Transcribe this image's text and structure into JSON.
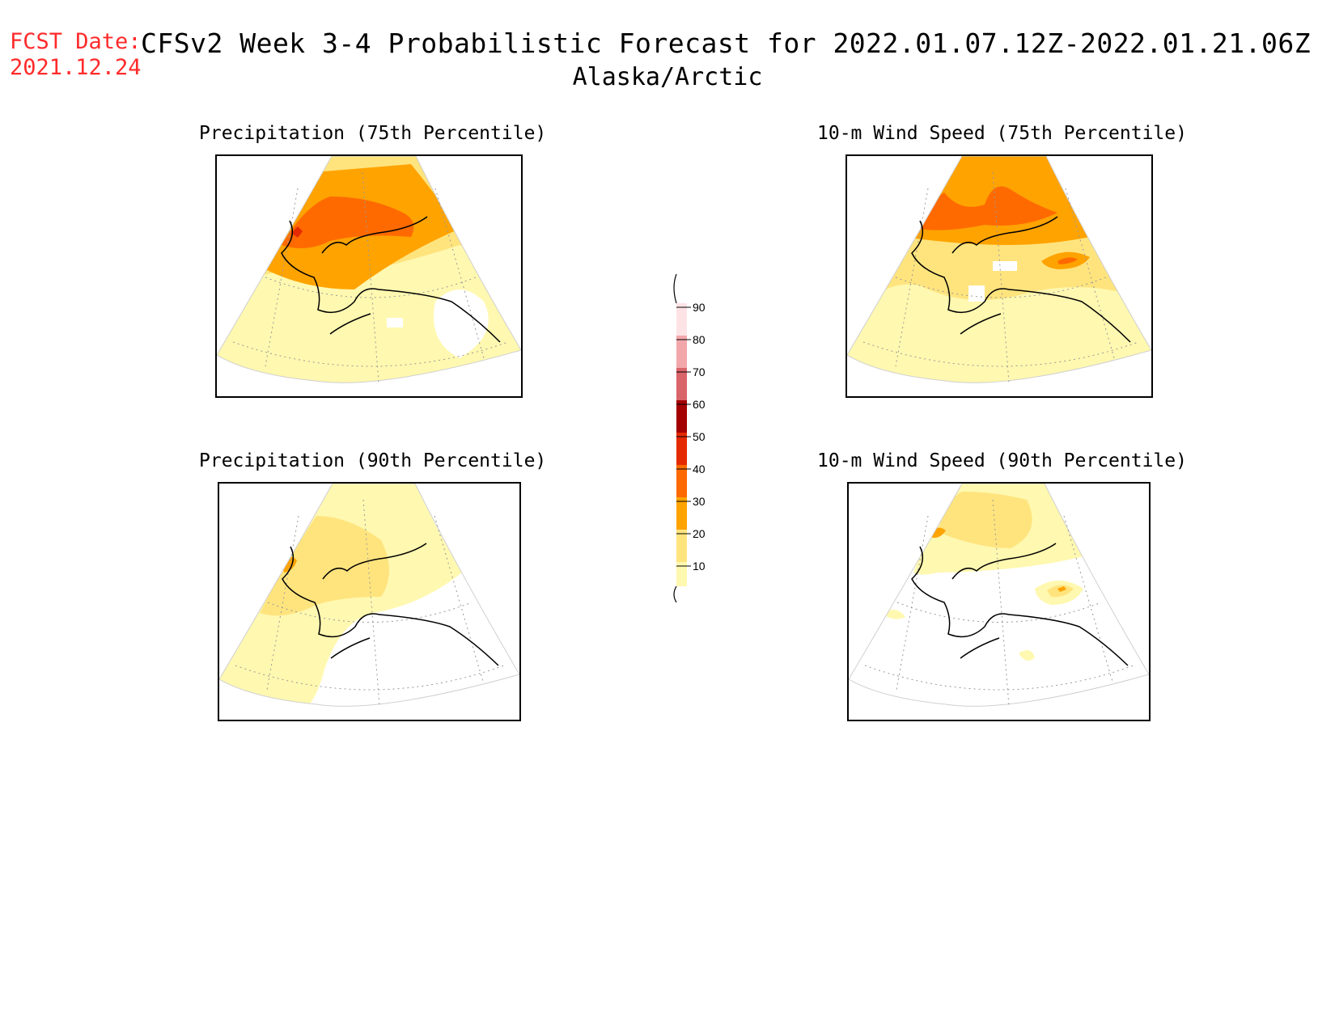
{
  "header": {
    "fcst_label": "FCST Date:",
    "fcst_date": "2021.12.24",
    "title": "CFSv2 Week 3-4 Probabilistic Forecast for 2022.01.07.12Z-2022.01.21.06Z",
    "region": "Alaska/Arctic"
  },
  "panels": {
    "precip75": {
      "title": "Precipitation (75th Percentile)"
    },
    "precip90": {
      "title": "Precipitation (90th Percentile)"
    },
    "wind75": {
      "title": "10-m Wind Speed (75th Percentile)"
    },
    "wind90": {
      "title": "10-m Wind Speed (90th Percentile)"
    }
  },
  "legend": {
    "levels": [
      "90",
      "80",
      "70",
      "60",
      "50",
      "40",
      "30",
      "20",
      "10"
    ],
    "colors": {
      "c10_20": "#fff8b0",
      "c20_30": "#ffe47e",
      "c30_40": "#ffa300",
      "c40_50": "#ff6a00",
      "c50_60": "#e52a00",
      "c60_70": "#a30000",
      "c70_80": "#d9646a",
      "c80_90": "#f2a7ab",
      "c90_100": "#fde3e6"
    }
  }
}
